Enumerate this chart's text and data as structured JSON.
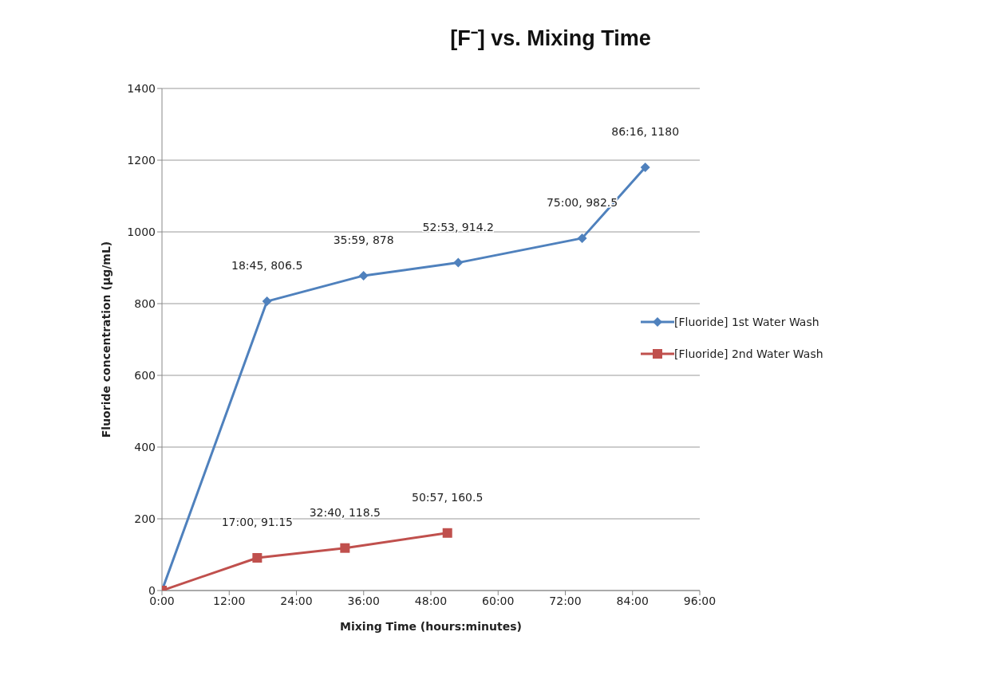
{
  "chart_data": {
    "type": "line",
    "title": "[F⁻] vs. Mixing Time",
    "xlabel": "Mixing Time (hours:minutes)",
    "ylabel": "Fluoride concentration (µg/mL)",
    "series": [
      {
        "name": "[Fluoride] 1st Water Wash",
        "color": "#4f81bd",
        "marker": "diamond",
        "x": [
          0,
          18.75,
          35.983,
          52.883,
          75,
          86.267
        ],
        "values": [
          0,
          806.5,
          878,
          914.2,
          982.5,
          1180
        ],
        "value_labels": [
          null,
          "18:45, 806.5",
          "35:59, 878",
          "52:53, 914.2",
          "75:00, 982.5",
          "86:16, 1180"
        ]
      },
      {
        "name": "[Fluoride] 2nd Water Wash",
        "color": "#c0504d",
        "marker": "square",
        "x": [
          0,
          17,
          32.667,
          50.95
        ],
        "values": [
          0,
          91.15,
          118.5,
          160.5
        ],
        "value_labels": [
          null,
          "17:00, 91.15",
          "32:40, 118.5",
          "50:57, 160.5"
        ]
      }
    ],
    "xlim": [
      0,
      96
    ],
    "xticks": [
      {
        "value": 0,
        "label": "0:00"
      },
      {
        "value": 12,
        "label": "12:00"
      },
      {
        "value": 24,
        "label": "24:00"
      },
      {
        "value": 36,
        "label": "36:00"
      },
      {
        "value": 48,
        "label": "48:00"
      },
      {
        "value": 60,
        "label": "60:00"
      },
      {
        "value": 72,
        "label": "72:00"
      },
      {
        "value": 84,
        "label": "84:00"
      },
      {
        "value": 96,
        "label": "96:00"
      }
    ],
    "ylim": [
      0,
      1400
    ],
    "yticks": [
      0,
      200,
      400,
      600,
      800,
      1000,
      1200,
      1400
    ],
    "grid": "y",
    "legend": "right",
    "line_style": "solid"
  }
}
